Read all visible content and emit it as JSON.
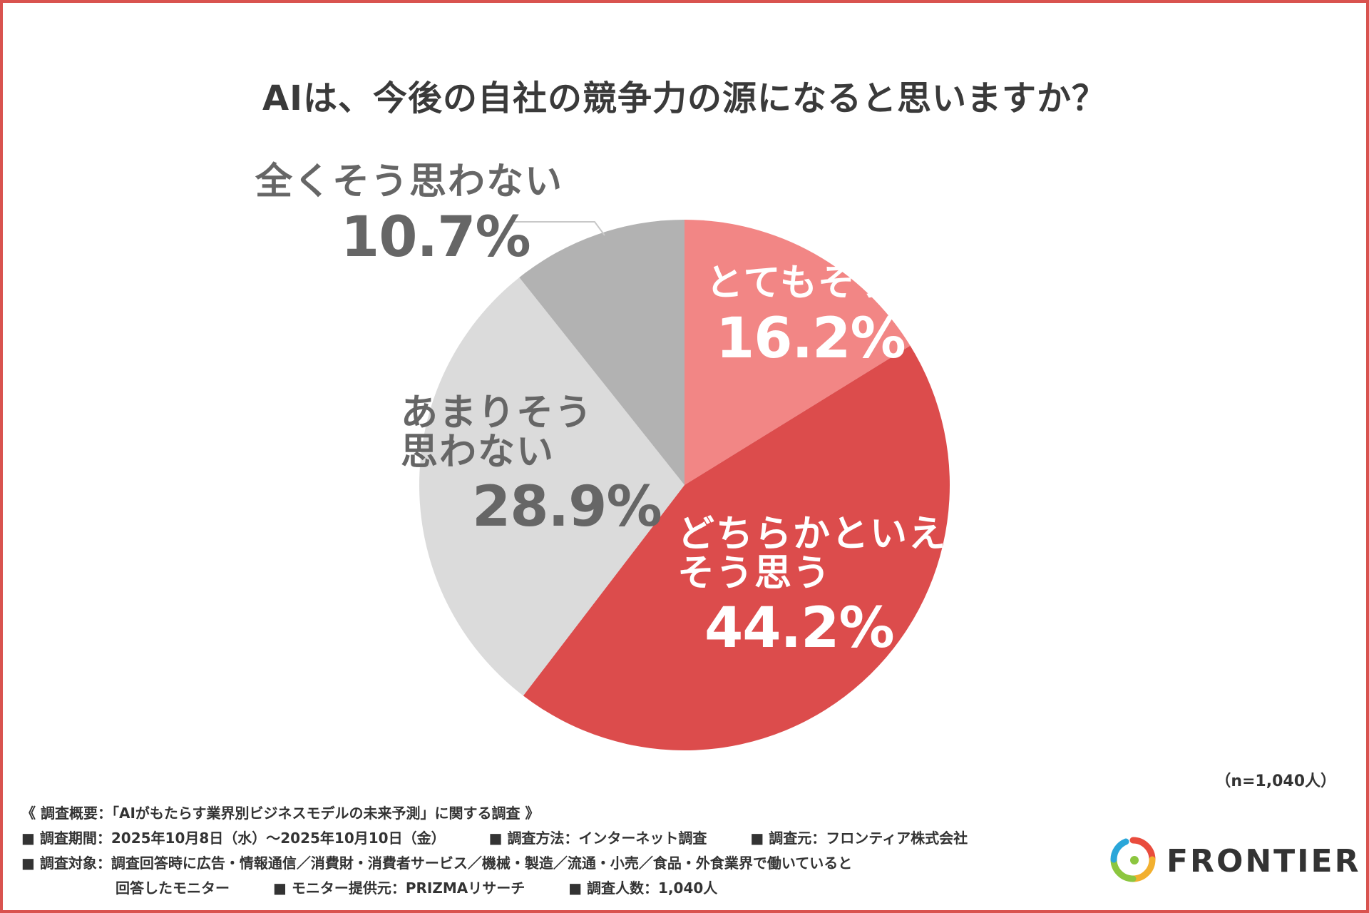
{
  "chart_data": {
    "type": "pie",
    "title": "AIは、今後の自社の競争力の源になると思いますか？",
    "slices": [
      {
        "label": "とてもそう思う",
        "label_lines": [
          "とてもそう思う"
        ],
        "value": 16.2,
        "value_label": "16.2%",
        "color": "#f28685"
      },
      {
        "label": "どちらかといえばそう思う",
        "label_lines": [
          "どちらかといえば",
          "そう思う"
        ],
        "value": 44.2,
        "value_label": "44.2%",
        "color": "#dc4c4c"
      },
      {
        "label": "あまりそう思わない",
        "label_lines": [
          "あまりそう",
          "思わない"
        ],
        "value": 28.9,
        "value_label": "28.9%",
        "color": "#dbdbdb"
      },
      {
        "label": "全くそう思わない",
        "label_lines": [
          "全くそう思わない"
        ],
        "value": 10.7,
        "value_label": "10.7%",
        "color": "#b2b2b2"
      }
    ]
  },
  "sample_size": "（n=1,040人）",
  "notes": {
    "overview": "《 調査概要：「AIがもたらす業界別ビジネスモデルの未来予測」に関する調査 》",
    "period": "■ 調査期間：2025年10月8日（水）～2025年10月10日（金）",
    "method": "■ 調査方法：インターネット調査",
    "source": "■ 調査元：フロンティア株式会社",
    "target": "■ 調査対象：調査回答時に広告・情報通信／消費財・消費者サービス／機械・製造／流通・小売／食品・外食業界で働いていると",
    "target_cont": "回答したモニター",
    "provider": "■ モニター提供元：PRIZMAリサーチ",
    "count": "■ 調査人数：1,040人"
  },
  "logo": {
    "text": "FRONTIER"
  }
}
